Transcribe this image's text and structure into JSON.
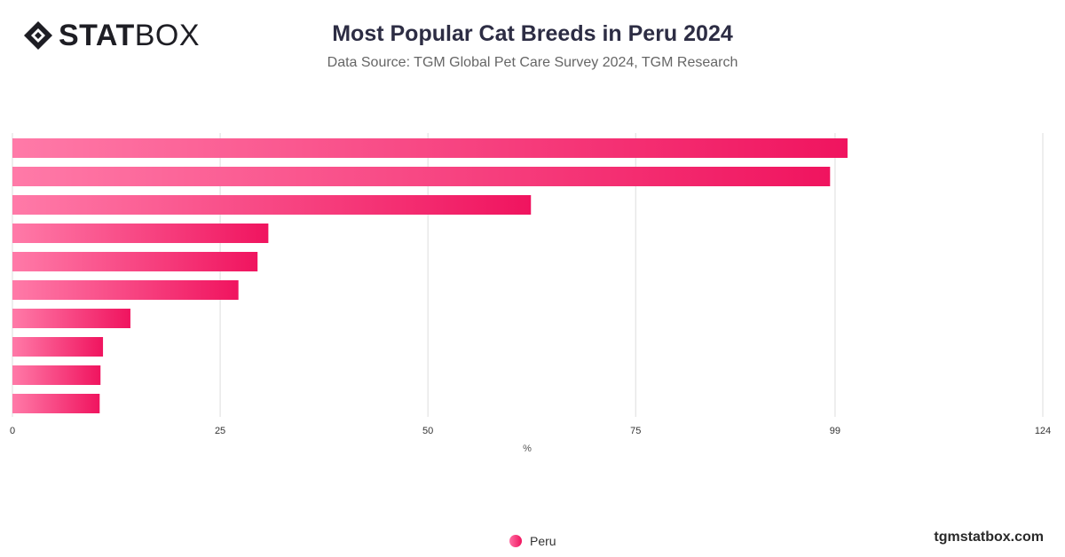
{
  "brand": {
    "logo_bold": "STAT",
    "logo_light": "BOX"
  },
  "title": "Most Popular Cat Breeds in Peru 2024",
  "subtitle": "Data Source: TGM Global Pet Care Survey 2024, TGM Research",
  "footer": "tgmstatbox.com",
  "colors": {
    "bar_start": "#ff7aa8",
    "bar_end": "#f0145f",
    "grid": "#dddddd"
  },
  "chart_data": {
    "type": "bar",
    "orientation": "horizontal",
    "categories": [
      "",
      "",
      "",
      "",
      "",
      "",
      "",
      "",
      "",
      ""
    ],
    "series": [
      {
        "name": "Peru",
        "values": [
          100.5,
          98.4,
          62.4,
          30.8,
          29.5,
          27.2,
          14.2,
          10.9,
          10.6,
          10.5
        ]
      }
    ],
    "xlabel": "%",
    "xlim": [
      0,
      124
    ],
    "xticks": [
      0,
      25,
      50,
      75,
      99,
      124
    ],
    "grid": true,
    "legend": "bottom-center"
  }
}
